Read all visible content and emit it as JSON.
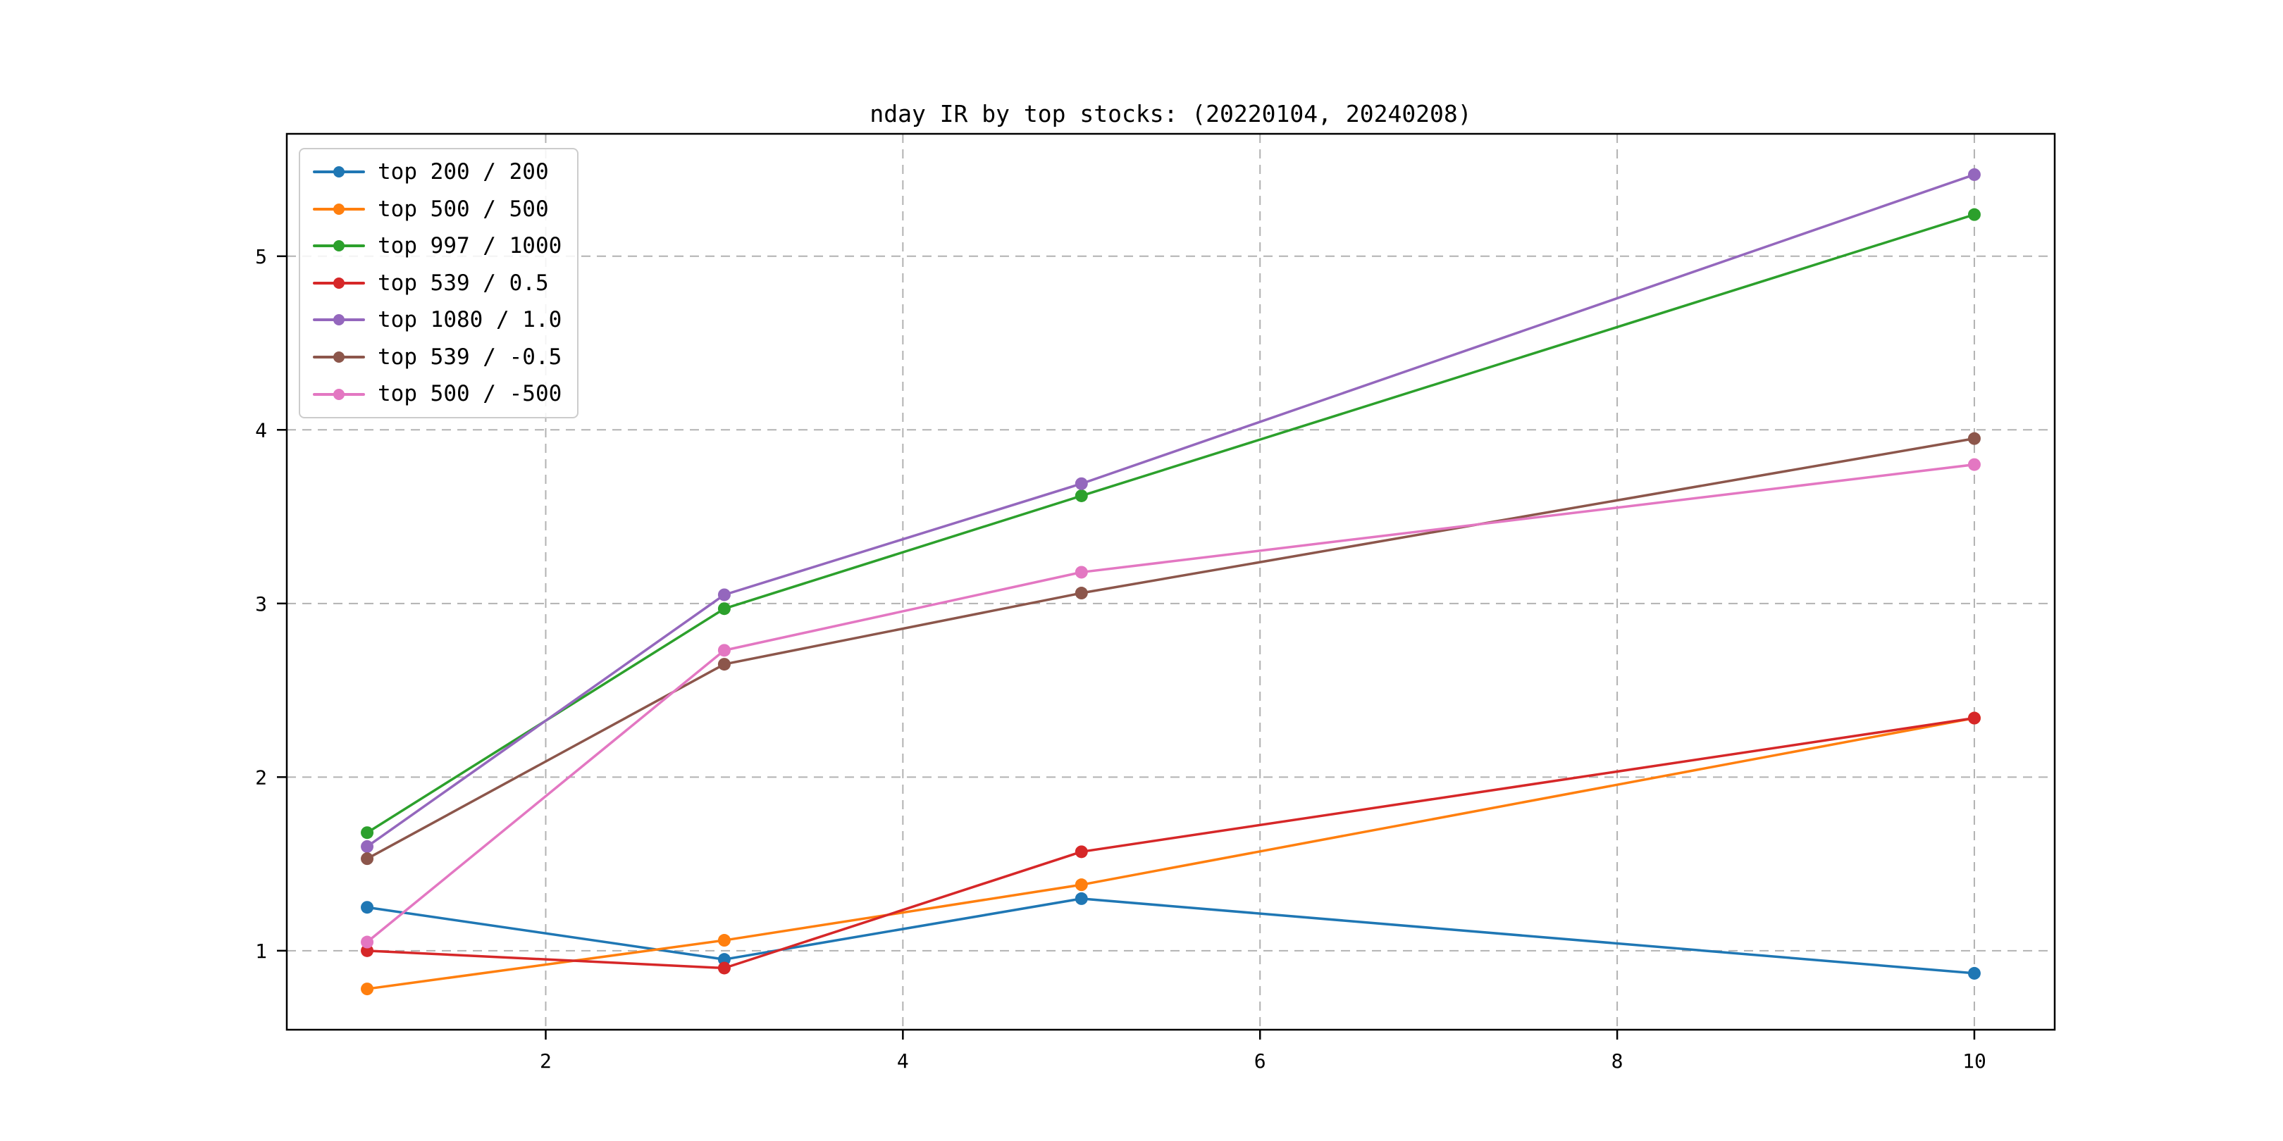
{
  "chart_data": {
    "type": "line",
    "title": "nday IR by top stocks: (20220104, 20240208)",
    "xlabel": "",
    "ylabel": "",
    "x": [
      1,
      3,
      5,
      10
    ],
    "series": [
      {
        "name": "top 200 / 200",
        "color": "#1f77b4",
        "values": [
          1.25,
          0.95,
          1.3,
          0.87
        ]
      },
      {
        "name": "top 500 / 500",
        "color": "#ff7f0e",
        "values": [
          0.78,
          1.06,
          1.38,
          2.34
        ]
      },
      {
        "name": "top 997 / 1000",
        "color": "#2ca02c",
        "values": [
          1.68,
          2.97,
          3.62,
          5.24
        ]
      },
      {
        "name": "top 539 / 0.5",
        "color": "#d62728",
        "values": [
          1.0,
          0.9,
          1.57,
          2.34
        ]
      },
      {
        "name": "top 1080 / 1.0",
        "color": "#9467bd",
        "values": [
          1.6,
          3.05,
          3.69,
          5.47
        ]
      },
      {
        "name": "top 539 / -0.5",
        "color": "#8c564b",
        "values": [
          1.53,
          2.65,
          3.06,
          3.95
        ]
      },
      {
        "name": "top 500 / -500",
        "color": "#e377c2",
        "values": [
          1.05,
          2.73,
          3.18,
          3.8
        ]
      }
    ],
    "xticks": [
      2,
      4,
      6,
      8,
      10
    ],
    "yticks": [
      1,
      2,
      3,
      4,
      5
    ],
    "xlim": [
      0.55,
      10.45
    ],
    "ylim": [
      0.545,
      5.705
    ],
    "grid": {
      "style": "dashed",
      "color": "#b2b2b2"
    },
    "legend_position": "upper-left",
    "marker": "o",
    "background": "#ffffff",
    "spine_color": "#000000"
  }
}
